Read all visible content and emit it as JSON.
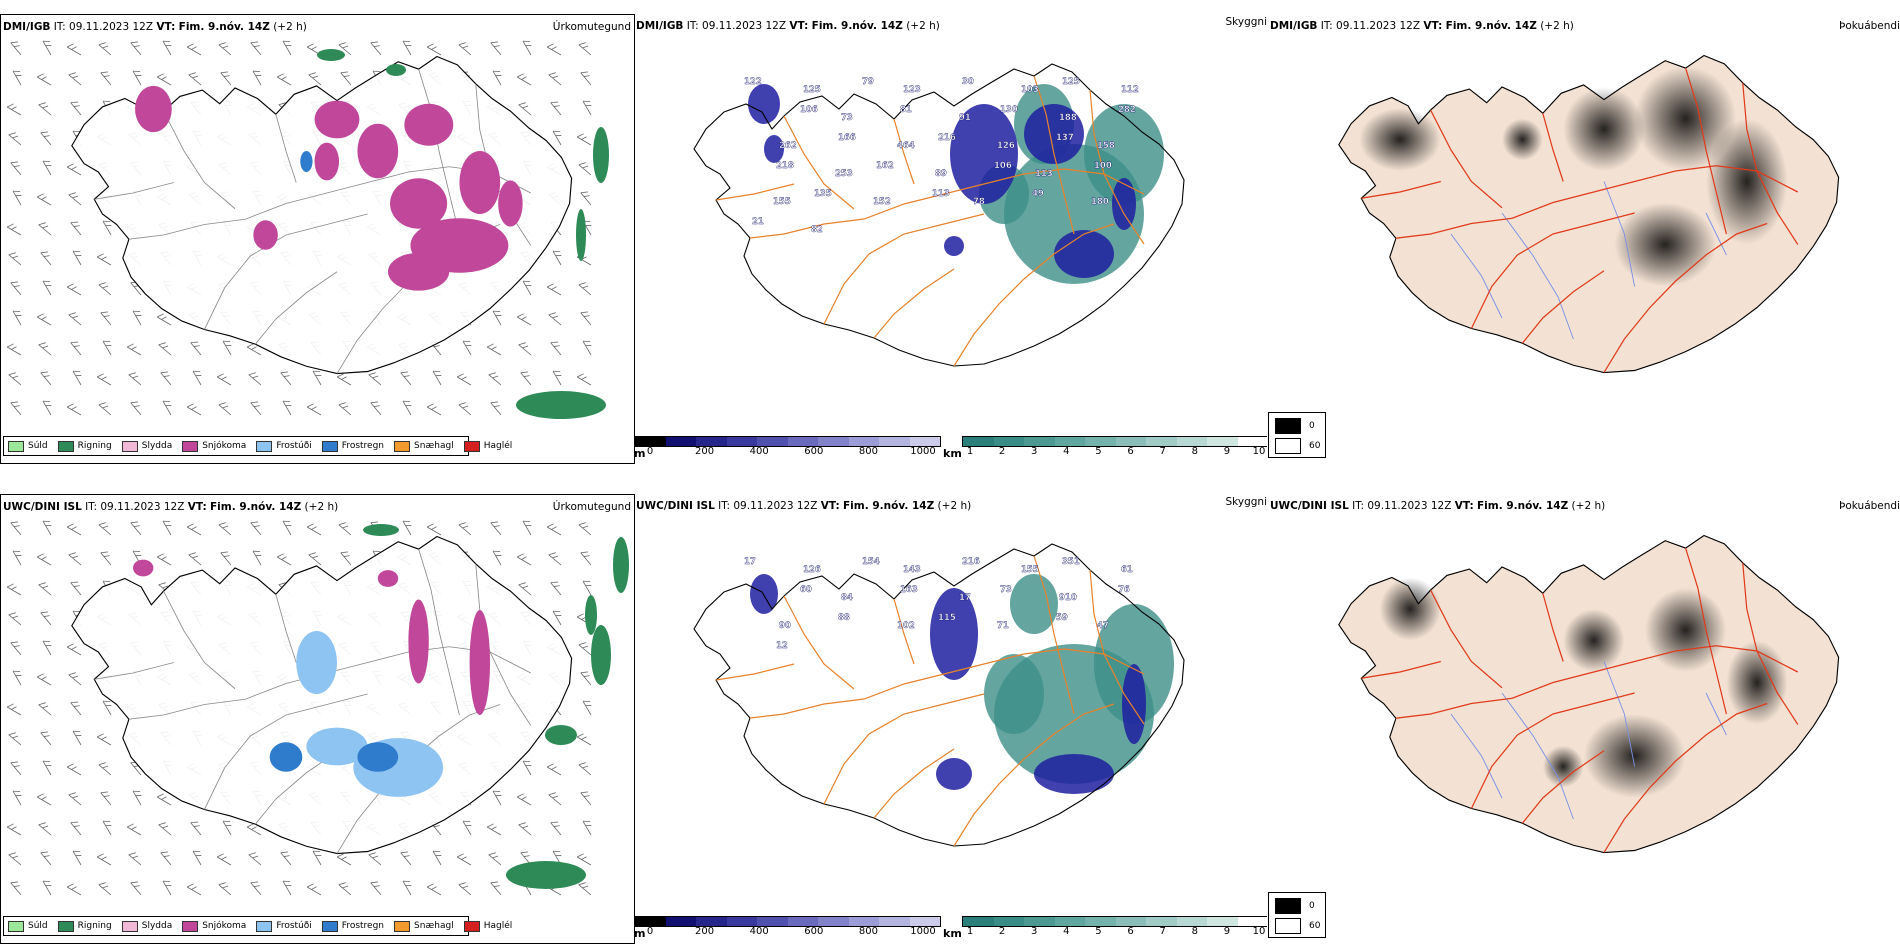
{
  "rows": [
    {
      "model": "DMI/IGB",
      "it_label": "IT:",
      "it_value": "09.11.2023 12Z",
      "vt_label": "VT:",
      "vt_value": "Fim. 9.nóv. 14Z",
      "lead": "(+2 h)",
      "titles": {
        "precip": "Úrkomutegund",
        "visibility": "Skyggni",
        "fog": "Þokuábendi"
      },
      "cloud_labels": [
        "122",
        "125",
        "79",
        "123",
        "30",
        "103",
        "125",
        "112",
        "106",
        "73",
        "81",
        "91",
        "130",
        "188",
        "282",
        "262",
        "166",
        "464",
        "216",
        "126",
        "137",
        "158",
        "218",
        "253",
        "162",
        "89",
        "106",
        "113",
        "100",
        "155",
        "135",
        "152",
        "113",
        "78",
        "49",
        "180",
        "21",
        "82"
      ]
    },
    {
      "model": "UWC/DINI ISL",
      "it_label": "IT:",
      "it_value": "09.11.2023 12Z",
      "vt_label": "VT:",
      "vt_value": "Fim. 9.nóv. 14Z",
      "lead": "(+2 h)",
      "titles": {
        "precip": "Úrkomutegund",
        "visibility": "Skyggni",
        "fog": "Þokuábendi"
      },
      "cloud_labels": [
        "17",
        "126",
        "154",
        "143",
        "216",
        "155",
        "351",
        "61",
        "60",
        "84",
        "163",
        "17",
        "73",
        "910",
        "76",
        "90",
        "88",
        "102",
        "115",
        "71",
        "59",
        "47",
        "12"
      ]
    }
  ],
  "precip_legend": [
    {
      "label": "Súld",
      "color": "#9be89b"
    },
    {
      "label": "Rigning",
      "color": "#2e8b57"
    },
    {
      "label": "Slydda",
      "color": "#f2b8d8"
    },
    {
      "label": "Snjókoma",
      "color": "#c0479a"
    },
    {
      "label": "Frostúði",
      "color": "#8ec4f2"
    },
    {
      "label": "Frostregn",
      "color": "#2f7bcc"
    },
    {
      "label": "Snæhagl",
      "color": "#f29a2e"
    },
    {
      "label": "Haglél",
      "color": "#d62020"
    }
  ],
  "cloud_base_bar": {
    "unit": "m",
    "ticks": [
      "0",
      "200",
      "400",
      "600",
      "800",
      "1000"
    ],
    "colors": [
      "#000000",
      "#101070",
      "#26268a",
      "#3a3a9e",
      "#5050ae",
      "#6a6abd",
      "#8282c8",
      "#9c9cd6",
      "#b4b4e0",
      "#ccccea"
    ]
  },
  "visibility_bar": {
    "unit": "km",
    "ticks": [
      "1",
      "2",
      "3",
      "4",
      "5",
      "6",
      "7",
      "8",
      "9",
      "10"
    ],
    "colors": [
      "#2a7f7a",
      "#3a8c86",
      "#4c9992",
      "#5fa69e",
      "#74b3ab",
      "#89bfb8",
      "#a0ccc5",
      "#b8d9d3",
      "#d0e6e1",
      "#ffffff"
    ]
  },
  "fog_key": [
    {
      "label": "0",
      "color": "#000000"
    },
    {
      "label": "60",
      "color": "#ffffff"
    }
  ],
  "colors": {
    "coast": "#000000",
    "roads_visibility": "#e8822a",
    "roads_fog": "#e03a1a",
    "rivers": "#7a90e6",
    "land_fog": "#f3e2d4",
    "snow": "#c0479a",
    "rain": "#2e8b57",
    "frostrain": "#2f7bcc",
    "frostdrizzle": "#8ec4f2",
    "cloud_low": "#1f1fa0",
    "vis_teal": "#3d8e88"
  }
}
